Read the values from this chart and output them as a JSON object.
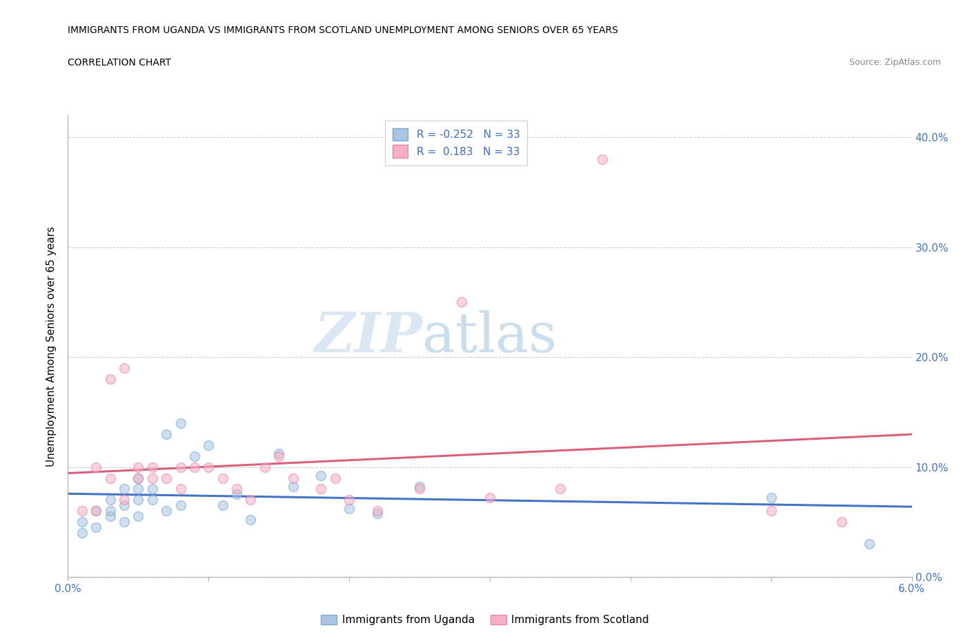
{
  "title_line1": "IMMIGRANTS FROM UGANDA VS IMMIGRANTS FROM SCOTLAND UNEMPLOYMENT AMONG SENIORS OVER 65 YEARS",
  "title_line2": "CORRELATION CHART",
  "source": "Source: ZipAtlas.com",
  "ylabel": "Unemployment Among Seniors over 65 years",
  "watermark_zip": "ZIP",
  "watermark_atlas": "atlas",
  "xlim": [
    0.0,
    0.06
  ],
  "ylim": [
    0.0,
    0.42
  ],
  "xticks": [
    0.0,
    0.01,
    0.02,
    0.03,
    0.04,
    0.05,
    0.06
  ],
  "yticks": [
    0.0,
    0.1,
    0.2,
    0.3,
    0.4
  ],
  "uganda_color": "#aac4e2",
  "scotland_color": "#f5b0c5",
  "uganda_edge": "#7aadd4",
  "scotland_edge": "#e888a8",
  "trend_uganda_color": "#4472c4",
  "trend_scotland_color": "#d9607a",
  "legend_uganda_color": "#aac4e2",
  "legend_scotland_color": "#f5b0c5",
  "R_uganda": -0.252,
  "N_uganda": 33,
  "R_scotland": 0.183,
  "N_scotland": 33,
  "uganda_x": [
    0.001,
    0.001,
    0.002,
    0.002,
    0.003,
    0.003,
    0.003,
    0.004,
    0.004,
    0.004,
    0.005,
    0.005,
    0.005,
    0.005,
    0.006,
    0.006,
    0.007,
    0.007,
    0.008,
    0.008,
    0.009,
    0.01,
    0.011,
    0.012,
    0.013,
    0.015,
    0.016,
    0.018,
    0.02,
    0.022,
    0.025,
    0.05,
    0.057
  ],
  "uganda_y": [
    0.05,
    0.04,
    0.06,
    0.045,
    0.055,
    0.06,
    0.07,
    0.05,
    0.065,
    0.08,
    0.055,
    0.07,
    0.08,
    0.09,
    0.07,
    0.08,
    0.06,
    0.13,
    0.14,
    0.065,
    0.11,
    0.12,
    0.065,
    0.075,
    0.052,
    0.112,
    0.082,
    0.092,
    0.062,
    0.058,
    0.082,
    0.072,
    0.03
  ],
  "scotland_x": [
    0.001,
    0.002,
    0.002,
    0.003,
    0.003,
    0.004,
    0.004,
    0.005,
    0.005,
    0.006,
    0.006,
    0.007,
    0.008,
    0.008,
    0.009,
    0.01,
    0.011,
    0.012,
    0.013,
    0.014,
    0.015,
    0.016,
    0.018,
    0.019,
    0.02,
    0.022,
    0.025,
    0.028,
    0.03,
    0.035,
    0.038,
    0.05,
    0.055
  ],
  "scotland_y": [
    0.06,
    0.06,
    0.1,
    0.09,
    0.18,
    0.07,
    0.19,
    0.09,
    0.1,
    0.09,
    0.1,
    0.09,
    0.1,
    0.08,
    0.1,
    0.1,
    0.09,
    0.08,
    0.07,
    0.1,
    0.11,
    0.09,
    0.08,
    0.09,
    0.07,
    0.06,
    0.08,
    0.25,
    0.072,
    0.08,
    0.38,
    0.06,
    0.05
  ],
  "marker_size": 100,
  "alpha": 0.55,
  "grid_color": "#cccccc",
  "grid_style": "--",
  "bg_color": "#ffffff",
  "axis_label_color": "#4472c4",
  "legend_label_uganda": "Immigrants from Uganda",
  "legend_label_scotland": "Immigrants from Scotland"
}
